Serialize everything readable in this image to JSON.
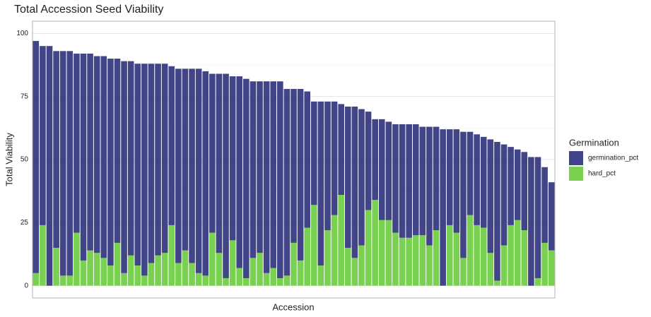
{
  "chart_data": {
    "type": "bar",
    "stacked": true,
    "title": "Total Accession Seed Viability",
    "x_label": "Accession",
    "y_label": "Total Viability",
    "legend_title": "Germination",
    "legend_position": "right",
    "categories": [
      null,
      null,
      null,
      null,
      null,
      null,
      null,
      null,
      null,
      null,
      null,
      null,
      null,
      null,
      null,
      null,
      null,
      null,
      null,
      null,
      null,
      null,
      null,
      null,
      null,
      null,
      null,
      null,
      null,
      null,
      null,
      null,
      null,
      null,
      null,
      null,
      null,
      null,
      null,
      null,
      null,
      null,
      null,
      null,
      null,
      null,
      null,
      null,
      null,
      null,
      null,
      null,
      null,
      null,
      null,
      null,
      null,
      null,
      null,
      null,
      null,
      null,
      null,
      null,
      null,
      null,
      null,
      null,
      null,
      null,
      null,
      null,
      null,
      null,
      null,
      null,
      null
    ],
    "series": [
      {
        "name": "germination_pct",
        "color": "#414487",
        "values": [
          92,
          71,
          95,
          78,
          89,
          89,
          71,
          82,
          78,
          78,
          80,
          82,
          73,
          84,
          77,
          80,
          84,
          79,
          76,
          75,
          63,
          77,
          72,
          77,
          81,
          81,
          63,
          71,
          81,
          65,
          76,
          79,
          70,
          68,
          76,
          74,
          78,
          74,
          61,
          68,
          54,
          41,
          65,
          51,
          45,
          36,
          56,
          60,
          54,
          39,
          32,
          40,
          39,
          43,
          45,
          45,
          44,
          43,
          47,
          41,
          62,
          38,
          41,
          50,
          33,
          36,
          36,
          45,
          55,
          40,
          31,
          28,
          31,
          51,
          48,
          30,
          27
        ]
      },
      {
        "name": "hard_pct",
        "color": "#7AD151",
        "values": [
          5,
          24,
          0,
          15,
          4,
          4,
          21,
          10,
          14,
          13,
          11,
          8,
          17,
          5,
          12,
          8,
          4,
          9,
          12,
          13,
          24,
          9,
          14,
          9,
          5,
          4,
          21,
          13,
          3,
          18,
          7,
          3,
          11,
          13,
          5,
          7,
          3,
          4,
          17,
          10,
          23,
          32,
          8,
          22,
          28,
          36,
          15,
          11,
          16,
          30,
          34,
          26,
          26,
          21,
          19,
          19,
          20,
          20,
          16,
          22,
          0,
          24,
          21,
          11,
          28,
          24,
          23,
          13,
          2,
          16,
          24,
          26,
          22,
          0,
          3,
          17,
          14
        ]
      }
    ],
    "ylim": [
      -4.85,
      104.85
    ],
    "yticks": [
      0,
      25,
      50,
      75,
      100
    ],
    "grid": true
  }
}
